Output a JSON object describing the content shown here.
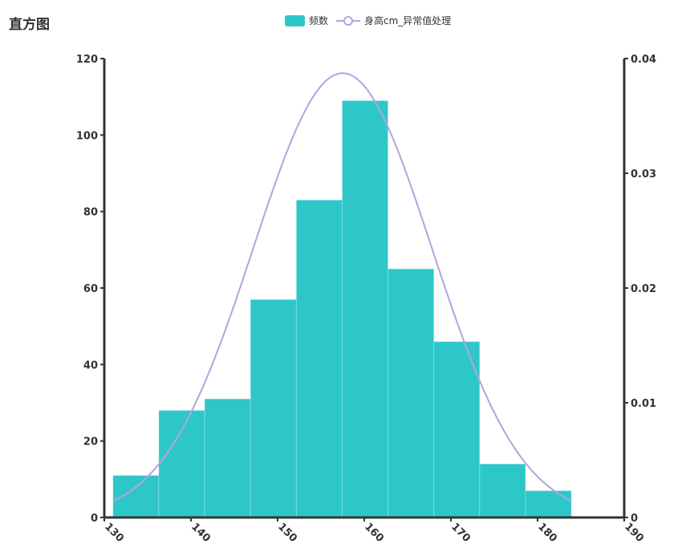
{
  "title": "直方图",
  "chart_data": {
    "type": "bar",
    "title": "直方图",
    "legend": [
      "频数",
      "身高cm_异常值处理"
    ],
    "legend_position": "top-center",
    "bins_start": 131.0,
    "bin_width": 5.29,
    "values": [
      11,
      28,
      31,
      57,
      83,
      109,
      65,
      46,
      14,
      7
    ],
    "xlim": [
      130,
      190
    ],
    "xticks": [
      "130",
      "140",
      "150",
      "160",
      "170",
      "180",
      "190"
    ],
    "ylim": [
      0,
      120
    ],
    "yticks": [
      "0",
      "20",
      "40",
      "60",
      "80",
      "100",
      "120"
    ],
    "y2lim": [
      0,
      0.04
    ],
    "y2ticks": [
      "0",
      "0.01",
      "0.02",
      "0.03",
      "0.04"
    ],
    "curve": {
      "type": "line",
      "name": "身高cm_异常值处理",
      "mean": 157.5,
      "std": 10.3
    },
    "colors": {
      "bar": "#2ec7c9",
      "line": "#b6a2de",
      "axis": "#333333"
    }
  }
}
